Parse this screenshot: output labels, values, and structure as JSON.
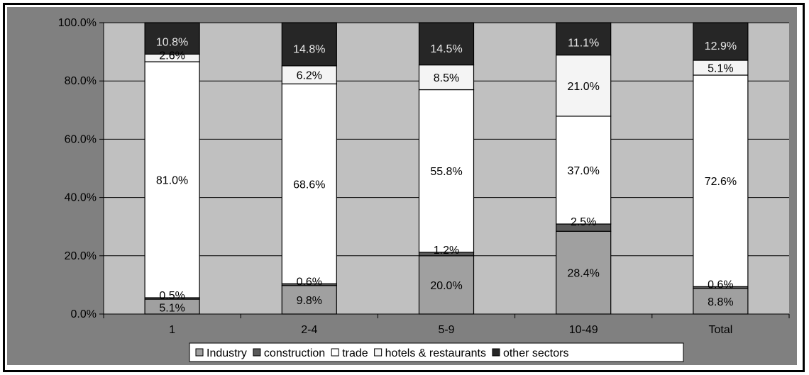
{
  "chart_data": {
    "type": "bar",
    "stacked": true,
    "percent": true,
    "categories": [
      "1",
      "2-4",
      "5-9",
      "10-49",
      "Total"
    ],
    "series": [
      {
        "name": "Industry",
        "color": "#a0a0a0",
        "values": [
          5.1,
          9.8,
          20.0,
          28.4,
          8.8
        ],
        "labels": [
          "5.1%",
          "9.8%",
          "20.0%",
          "28.4%",
          "8.8%"
        ]
      },
      {
        "name": "construction",
        "color": "#595959",
        "values": [
          0.5,
          0.6,
          1.2,
          2.5,
          0.6
        ],
        "labels": [
          "0.5%",
          "0.6%",
          "1.2%",
          "2.5%",
          "0.6%"
        ]
      },
      {
        "name": "trade",
        "color": "#ffffff",
        "values": [
          81.0,
          68.6,
          55.8,
          37.0,
          72.6
        ],
        "labels": [
          "81.0%",
          "68.6%",
          "55.8%",
          "37.0%",
          "72.6%"
        ]
      },
      {
        "name": "hotels & restaurants",
        "color": "#f4f4f4",
        "values": [
          2.6,
          6.2,
          8.5,
          21.0,
          5.1
        ],
        "labels": [
          "2.6%",
          "6.2%",
          "8.5%",
          "21.0%",
          "5.1%"
        ]
      },
      {
        "name": "other sectors",
        "color": "#262626",
        "values": [
          10.8,
          14.8,
          14.5,
          11.1,
          12.9
        ],
        "labels": [
          "10.8%",
          "14.8%",
          "14.5%",
          "11.1%",
          "12.9%"
        ]
      }
    ],
    "yticks": [
      "0.0%",
      "20.0%",
      "40.0%",
      "60.0%",
      "80.0%",
      "100.0%"
    ],
    "ylim": [
      0,
      100
    ],
    "grid": true,
    "legend_position": "bottom",
    "colors": {
      "outer_background": "#808080",
      "plot_background": "#c0c0c0",
      "gridline": "#000000"
    }
  }
}
